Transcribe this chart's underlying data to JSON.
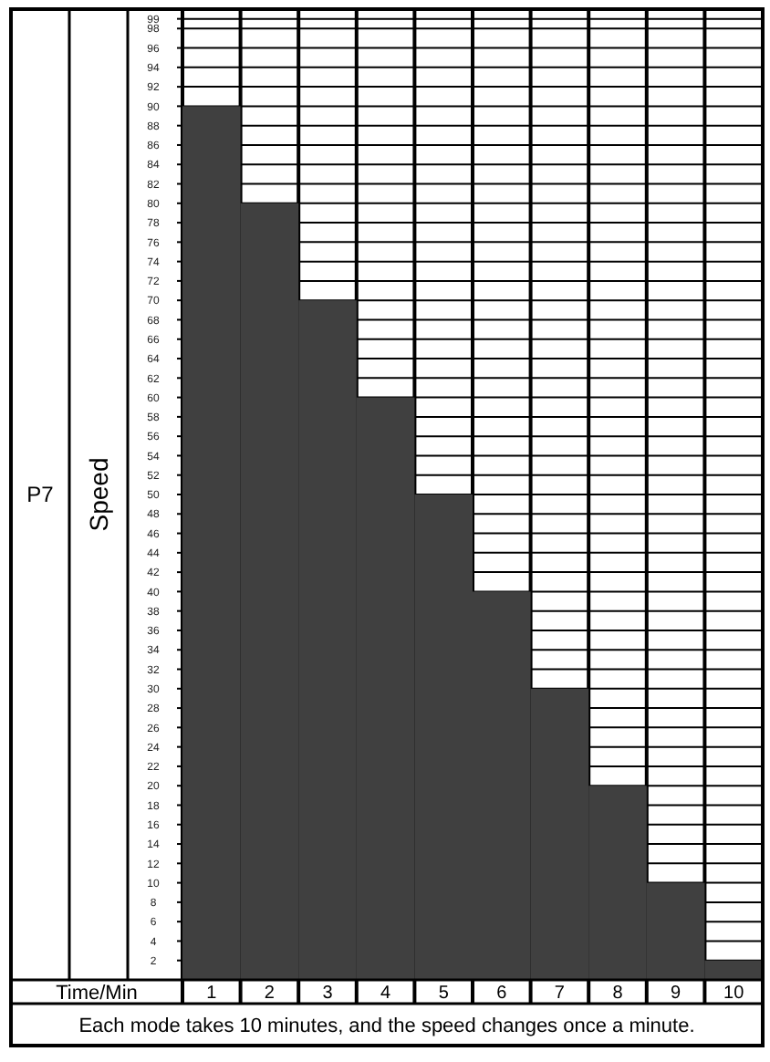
{
  "chart_data": {
    "type": "bar",
    "title": "P7",
    "ylabel": "Speed",
    "xlabel": "Time/Min",
    "annotations": [
      "Each mode takes 10 minutes, and the speed changes once a minute."
    ],
    "categories": [
      "1",
      "2",
      "3",
      "4",
      "5",
      "6",
      "7",
      "8",
      "9",
      "10"
    ],
    "values": [
      90,
      80,
      70,
      60,
      50,
      40,
      30,
      20,
      10,
      2
    ],
    "color": "#404040",
    "ylim": [
      0,
      100
    ],
    "yticks": [
      2,
      4,
      6,
      8,
      10,
      12,
      14,
      16,
      18,
      20,
      22,
      24,
      26,
      28,
      30,
      32,
      34,
      36,
      38,
      40,
      42,
      44,
      46,
      48,
      50,
      52,
      54,
      56,
      58,
      60,
      62,
      64,
      66,
      68,
      70,
      72,
      74,
      76,
      78,
      80,
      82,
      84,
      86,
      88,
      90,
      92,
      94,
      96,
      98,
      99
    ],
    "grid": true
  }
}
